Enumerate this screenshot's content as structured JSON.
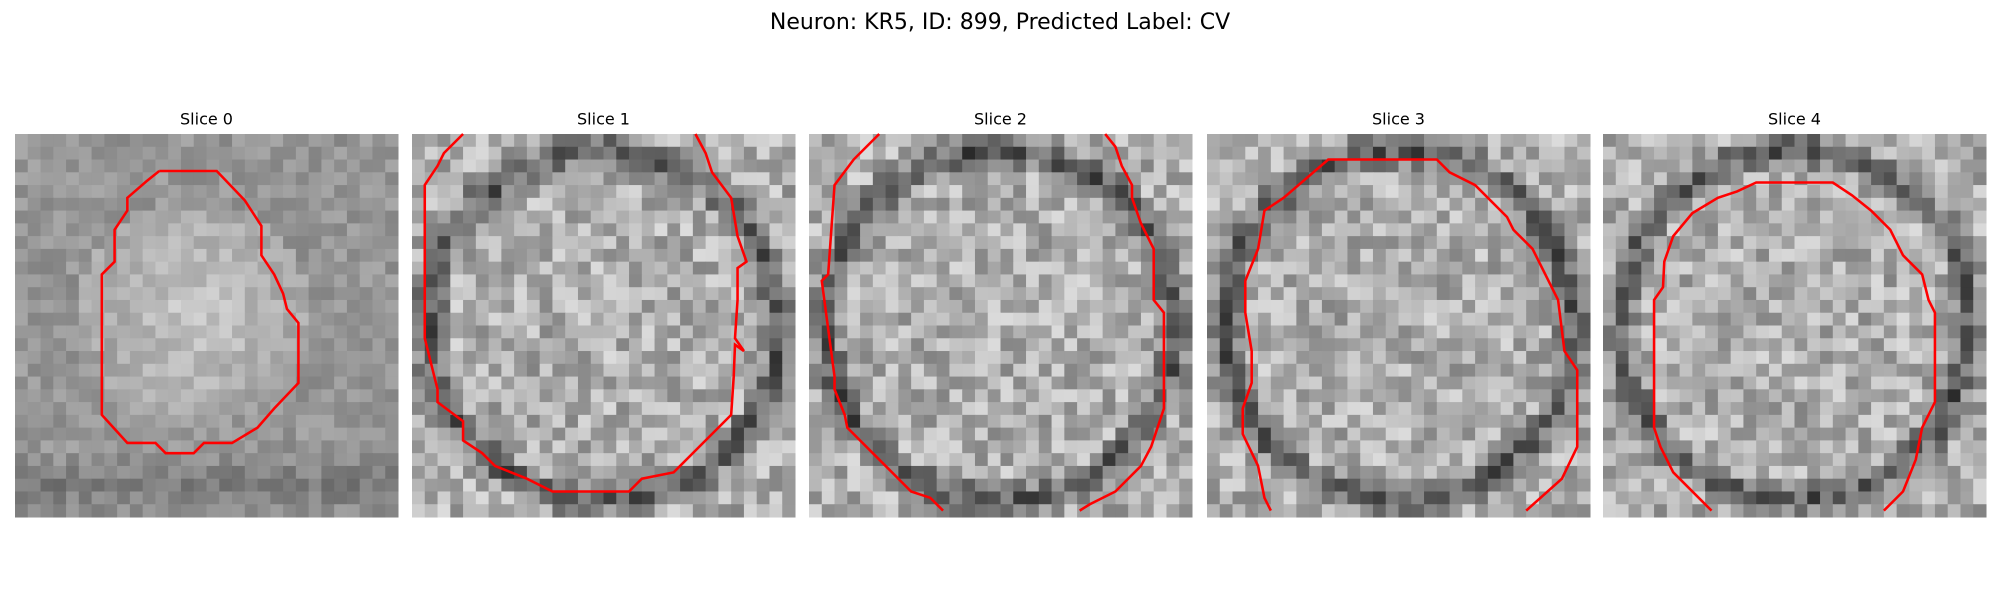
{
  "title": "Neuron: KR5, ID: 899, Predicted Label: CV",
  "panels": [
    {
      "title": "Slice 0"
    },
    {
      "title": "Slice 1"
    },
    {
      "title": "Slice 2"
    },
    {
      "title": "Slice 3"
    },
    {
      "title": "Slice 4"
    }
  ]
}
